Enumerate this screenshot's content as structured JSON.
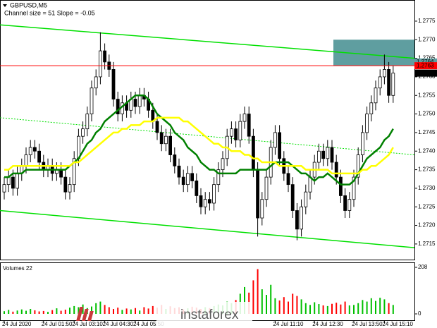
{
  "chart_data": {
    "type": "candlestick",
    "title": "GBPUSD,M5",
    "subtitle": "Channel size = 51 Slope = -0.05",
    "volume_title": "Volumes 22",
    "watermark": "instaforex",
    "categories": [
      "24 Jul 2020",
      null,
      null,
      null,
      null,
      null,
      null,
      null,
      null,
      "24 Jul 01:50",
      null,
      null,
      null,
      null,
      null,
      null,
      "24 Jul 03:10",
      null,
      null,
      null,
      null,
      null,
      null,
      "24 Jul 04:30",
      null,
      null,
      null,
      null,
      null,
      null,
      "24 Jul 05:50",
      null,
      null,
      null,
      null,
      null,
      null,
      null,
      null,
      null,
      null,
      null,
      null,
      null,
      null,
      null,
      null,
      null,
      null,
      null,
      null,
      null,
      null,
      null,
      null,
      null,
      null,
      null,
      null,
      null,
      null,
      null,
      "24 Jul 11:10",
      null,
      null,
      null,
      null,
      null,
      null,
      null,
      null,
      "24 Jul 12:30",
      null,
      null,
      null,
      null,
      null,
      null,
      null,
      null,
      "24 Jul 13:50",
      null,
      null,
      null,
      null,
      null,
      null,
      "24 Jul 15:10",
      null,
      null
    ],
    "open": [
      1.2729,
      1.2731,
      1.2733,
      1.273,
      1.2734,
      1.2736,
      1.2739,
      1.2741,
      1.274,
      1.2737,
      1.2735,
      1.2736,
      1.2734,
      1.2735,
      1.2733,
      1.2729,
      1.2731,
      1.2738,
      1.2744,
      1.2746,
      1.275,
      1.2757,
      1.276,
      1.2767,
      1.2764,
      1.2762,
      1.2754,
      1.275,
      1.2753,
      1.2751,
      1.2754,
      1.2752,
      1.2755,
      1.2754,
      1.2751,
      1.2748,
      1.2745,
      1.2742,
      1.2744,
      1.2739,
      1.2736,
      1.2733,
      1.2731,
      1.2734,
      1.2732,
      1.2728,
      1.2725,
      1.2727,
      1.2726,
      1.2731,
      1.2735,
      1.2738,
      1.2744,
      1.2746,
      1.2743,
      1.2748,
      1.275,
      1.2744,
      1.2735,
      1.2722,
      1.2727,
      1.2733,
      1.2741,
      1.2745,
      1.2738,
      1.2734,
      1.2731,
      1.2724,
      1.2719,
      1.2725,
      1.2729,
      1.2733,
      1.2737,
      1.274,
      1.2738,
      1.2741,
      1.2737,
      1.2733,
      1.2728,
      1.2724,
      1.2727,
      1.2733,
      1.2739,
      1.2745,
      1.275,
      1.2753,
      1.2757,
      1.276,
      1.2762,
      1.2755
    ],
    "high": [
      1.2733,
      1.2735,
      1.2735,
      1.2736,
      1.2738,
      1.2741,
      1.2743,
      1.2743,
      1.2742,
      1.2739,
      1.2738,
      1.2738,
      1.2737,
      1.2737,
      1.2735,
      1.2733,
      1.274,
      1.2746,
      1.2748,
      1.2752,
      1.2759,
      1.2762,
      1.2772,
      1.2769,
      1.2766,
      1.2764,
      1.2756,
      1.2755,
      1.2755,
      1.2756,
      1.2756,
      1.2757,
      1.2757,
      1.2756,
      1.2753,
      1.275,
      1.2747,
      1.2746,
      1.2746,
      1.2741,
      1.2738,
      1.2735,
      1.2736,
      1.2736,
      1.2734,
      1.273,
      1.2729,
      1.2729,
      1.2733,
      1.2737,
      1.274,
      1.2746,
      1.2748,
      1.2748,
      1.275,
      1.2752,
      1.2752,
      1.2746,
      1.2737,
      1.2729,
      1.2735,
      1.2743,
      1.2747,
      1.2747,
      1.274,
      1.2736,
      1.2733,
      1.2726,
      1.2727,
      1.2731,
      1.2735,
      1.2739,
      1.2742,
      1.2742,
      1.2743,
      1.2743,
      1.2739,
      1.2735,
      1.273,
      1.2729,
      1.2735,
      1.2741,
      1.2747,
      1.2752,
      1.2755,
      1.2759,
      1.2762,
      1.2766,
      1.2764,
      1.2763
    ],
    "low": [
      1.2727,
      1.2729,
      1.2728,
      1.2728,
      1.2732,
      1.2734,
      1.2737,
      1.2738,
      1.2735,
      1.2733,
      1.2733,
      1.2732,
      1.2732,
      1.2731,
      1.2727,
      1.2727,
      1.2729,
      1.2736,
      1.2742,
      1.2744,
      1.2748,
      1.2755,
      1.2758,
      1.2762,
      1.276,
      1.2752,
      1.2748,
      1.2748,
      1.2749,
      1.2749,
      1.275,
      1.275,
      1.2752,
      1.2749,
      1.2746,
      1.2743,
      1.274,
      1.274,
      1.2737,
      1.2734,
      1.2731,
      1.2729,
      1.2729,
      1.273,
      1.2726,
      1.2723,
      1.2723,
      1.2724,
      1.2724,
      1.2729,
      1.2733,
      1.2736,
      1.2742,
      1.2741,
      1.2741,
      1.2746,
      1.2742,
      1.2733,
      1.2717,
      1.272,
      1.2725,
      1.2731,
      1.2739,
      1.2736,
      1.2732,
      1.2729,
      1.2722,
      1.2716,
      1.2717,
      1.2723,
      1.2727,
      1.2731,
      1.2735,
      1.2736,
      1.2736,
      1.2735,
      1.2731,
      1.2726,
      1.2722,
      1.2722,
      1.2725,
      1.2731,
      1.2737,
      1.2743,
      1.2748,
      1.2751,
      1.2755,
      1.2758,
      1.2753,
      1.2753
    ],
    "close": [
      1.2731,
      1.2733,
      1.273,
      1.2734,
      1.2736,
      1.2739,
      1.2741,
      1.274,
      1.2737,
      1.2735,
      1.2736,
      1.2734,
      1.2735,
      1.2733,
      1.2729,
      1.2731,
      1.2738,
      1.2744,
      1.2746,
      1.275,
      1.2757,
      1.276,
      1.2767,
      1.2764,
      1.2762,
      1.2754,
      1.275,
      1.2753,
      1.2751,
      1.2754,
      1.2752,
      1.2755,
      1.2754,
      1.2751,
      1.2748,
      1.2745,
      1.2742,
      1.2744,
      1.2739,
      1.2736,
      1.2733,
      1.2731,
      1.2734,
      1.2732,
      1.2728,
      1.2725,
      1.2727,
      1.2726,
      1.2731,
      1.2735,
      1.2738,
      1.2744,
      1.2746,
      1.2743,
      1.2748,
      1.275,
      1.2744,
      1.2735,
      1.2722,
      1.2727,
      1.2733,
      1.2741,
      1.2745,
      1.2738,
      1.2734,
      1.2731,
      1.2724,
      1.2719,
      1.2725,
      1.2729,
      1.2733,
      1.2737,
      1.274,
      1.2738,
      1.2741,
      1.2737,
      1.2733,
      1.2728,
      1.2724,
      1.2727,
      1.2733,
      1.2739,
      1.2745,
      1.275,
      1.2753,
      1.2757,
      1.276,
      1.2762,
      1.2755,
      1.2761
    ],
    "volumes": [
      12,
      18,
      10,
      15,
      20,
      14,
      22,
      16,
      11,
      13,
      9,
      17,
      25,
      14,
      19,
      28,
      35,
      30,
      42,
      26,
      33,
      48,
      55,
      40,
      30,
      22,
      28,
      18,
      24,
      20,
      26,
      15,
      30,
      24,
      35,
      28,
      40,
      22,
      34,
      26,
      30,
      20,
      25,
      32,
      28,
      22,
      30,
      26,
      35,
      42,
      38,
      55,
      48,
      62,
      90,
      120,
      95,
      150,
      200,
      110,
      85,
      130,
      70,
      60,
      75,
      55,
      90,
      80,
      65,
      48,
      40,
      52,
      44,
      38,
      35,
      45,
      50,
      42,
      55,
      38,
      40,
      48,
      62,
      55,
      70,
      58,
      72,
      65,
      48,
      40
    ],
    "up_color": "#ffffff",
    "down_color": "#000000",
    "wick_color": "#000000",
    "volume_up_color": "#00c000",
    "volume_down_color": "#ff0000",
    "moving_averages": [
      {
        "color": "#008000",
        "width": 2.5,
        "values": [
          1.2733,
          1.2733,
          1.2734,
          1.2734,
          1.2734,
          1.2735,
          1.2735,
          1.2735,
          1.2735,
          1.2735,
          1.2735,
          1.2735,
          1.2735,
          1.2735,
          1.2735,
          1.2736,
          1.2737,
          1.2738,
          1.274,
          1.2742,
          1.2743,
          1.2745,
          1.2746,
          1.2748,
          1.2749,
          1.275,
          1.2751,
          1.2752,
          1.2753,
          1.2754,
          1.2755,
          1.2755,
          1.2755,
          1.2754,
          1.2752,
          1.275,
          1.2749,
          1.2748,
          1.2747,
          1.2745,
          1.2744,
          1.2743,
          1.2741,
          1.274,
          1.2739,
          1.2737,
          1.2736,
          1.2735,
          1.2735,
          1.2734,
          1.2734,
          1.2734,
          1.2734,
          1.2734,
          1.2735,
          1.2735,
          1.2735,
          1.2735,
          1.2735,
          1.2735,
          1.2735,
          1.2736,
          1.2737,
          1.2737,
          1.2737,
          1.2737,
          1.2736,
          1.2735,
          1.2734,
          1.2734,
          1.2733,
          1.2732,
          1.2733,
          1.2733,
          1.2734,
          1.2733,
          1.2732,
          1.2731,
          1.2731,
          1.2731,
          1.2732,
          1.2734,
          1.2736,
          1.2738,
          1.2739,
          1.274,
          1.2741,
          1.2743,
          1.2744,
          1.2746
        ]
      },
      {
        "color": "#ffff00",
        "width": 2.5,
        "values": [
          1.2735,
          1.2735,
          1.2736,
          1.2736,
          1.2736,
          1.2736,
          1.2736,
          1.2736,
          1.2736,
          1.2736,
          1.2736,
          1.2736,
          1.2736,
          1.2736,
          1.2736,
          1.2736,
          1.2737,
          1.2737,
          1.2738,
          1.2739,
          1.274,
          1.2741,
          1.2742,
          1.2743,
          1.2744,
          1.2745,
          1.2745,
          1.2746,
          1.2746,
          1.2747,
          1.2747,
          1.2747,
          1.2748,
          1.2748,
          1.2748,
          1.2749,
          1.2749,
          1.2749,
          1.2749,
          1.2749,
          1.2749,
          1.2748,
          1.2748,
          1.2747,
          1.2746,
          1.2745,
          1.2744,
          1.2743,
          1.2742,
          1.2742,
          1.2741,
          1.2741,
          1.274,
          1.274,
          1.274,
          1.2739,
          1.2739,
          1.2738,
          1.2738,
          1.2737,
          1.2737,
          1.2737,
          1.2737,
          1.2736,
          1.2736,
          1.2736,
          1.2736,
          1.2736,
          1.2736,
          1.2735,
          1.2735,
          1.2735,
          1.2735,
          1.2735,
          1.2735,
          1.2734,
          1.2734,
          1.2734,
          1.2734,
          1.2734,
          1.2734,
          1.2734,
          1.2735,
          1.2735,
          1.2736,
          1.2736,
          1.2737,
          1.2738,
          1.2739,
          1.2741
        ]
      }
    ],
    "channel": {
      "color": "#00e000",
      "upper": [
        1.2774,
        1.2765
      ],
      "middle": [
        1.2749,
        1.2739
      ],
      "lower": [
        1.2724,
        1.2714
      ]
    },
    "zone": {
      "color": "#5f9ea0",
      "range": [
        1.2763,
        1.277
      ]
    },
    "price_labels": [
      {
        "value": 1.2764,
        "color": "#5f9ea0",
        "line": false
      },
      {
        "value": 1.2763,
        "color": "#ff0000",
        "line": true
      },
      {
        "value": 1.2761,
        "color": "#000000",
        "line": false
      }
    ],
    "ylim": [
      1.27108,
      1.27805
    ],
    "yticks": [
      1.2715,
      {
        "value": 1.272,
        "label": "1.2720"
      },
      1.2725,
      {
        "value": 1.273,
        "label": "1.2730"
      },
      1.2735,
      {
        "value": 1.274,
        "label": "1.2740"
      },
      1.2745,
      {
        "value": 1.275,
        "label": "1.2750"
      },
      1.2755,
      {
        "value": 1.276,
        "label": "1.2760"
      },
      1.2765,
      {
        "value": 1.277,
        "label": "1.2770"
      },
      1.2775
    ],
    "volume_lim": [
      0,
      208
    ],
    "volume_ticks": [
      0,
      208
    ],
    "grid": false
  }
}
